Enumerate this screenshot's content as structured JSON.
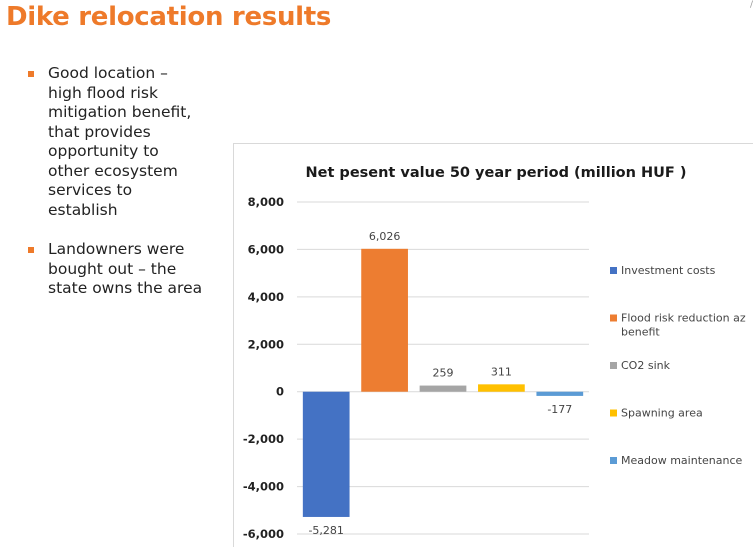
{
  "slide": {
    "title": "Dike relocation results",
    "corner_mark": "/"
  },
  "bullets": [
    {
      "text": "Good location – high flood risk mitigation benefit, that provides opportunity to other ecosystem services to establish"
    },
    {
      "text": "Landowners were bought out – the state owns the area"
    }
  ],
  "chart_data": {
    "type": "bar",
    "title": "Net pesent value 50 year period  (million HUF )",
    "ylim": [
      -6000,
      8000
    ],
    "ytick_step": 2000,
    "ytick_labels": [
      "-6,000",
      "-4,000",
      "-2,000",
      "0",
      "2,000",
      "4,000",
      "6,000",
      "8,000"
    ],
    "grid": true,
    "legend_position": "right",
    "series": [
      {
        "name": "Investment costs",
        "value": -5281,
        "label": "-5,281",
        "color": "#4472c4"
      },
      {
        "name": "Flood risk reduction az benefit",
        "value": 6026,
        "label": "6,026",
        "color": "#ed7d31"
      },
      {
        "name": "CO2 sink",
        "value": 259,
        "label": "259",
        "color": "#a5a5a5"
      },
      {
        "name": "Spawning area",
        "value": 311,
        "label": "311",
        "color": "#ffc000"
      },
      {
        "name": "Meadow maintenance",
        "value": -177,
        "label": "-177",
        "color": "#5b9bd5"
      }
    ]
  }
}
